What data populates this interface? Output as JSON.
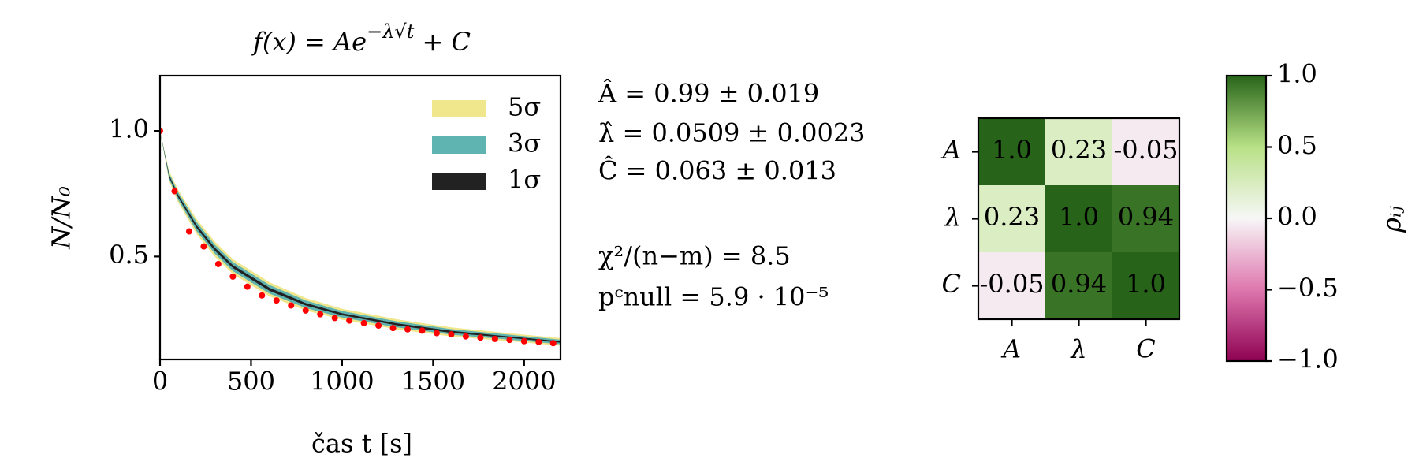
{
  "chart_data": [
    {
      "type": "scatter",
      "title": "f(x) = Ae",
      "title_sup": "−λ√t",
      "title_end": " + C",
      "xlabel": "čas t [s]",
      "ylabel": "N/N₀",
      "x": [
        0,
        80,
        160,
        240,
        320,
        400,
        480,
        560,
        640,
        720,
        800,
        880,
        960,
        1040,
        1120,
        1200,
        1280,
        1360,
        1440,
        1520,
        1600,
        1680,
        1760,
        1840,
        1920,
        2000,
        2080,
        2160
      ],
      "values": [
        1.0,
        0.76,
        0.6,
        0.54,
        0.47,
        0.42,
        0.38,
        0.345,
        0.325,
        0.305,
        0.285,
        0.27,
        0.255,
        0.245,
        0.235,
        0.225,
        0.215,
        0.21,
        0.205,
        0.195,
        0.19,
        0.182,
        0.177,
        0.172,
        0.168,
        0.163,
        0.16,
        0.155
      ],
      "color": "#ff0000",
      "band_x": [
        0,
        50,
        100,
        200,
        300,
        400,
        600,
        800,
        1000,
        1300,
        1600,
        1900,
        2200
      ],
      "bands": [
        {
          "name": "5σ",
          "color": "#f0e68c",
          "lower": [
            1.0,
            0.8,
            0.715,
            0.59,
            0.5,
            0.43,
            0.342,
            0.285,
            0.248,
            0.21,
            0.182,
            0.164,
            0.145
          ],
          "upper": [
            1.0,
            0.84,
            0.765,
            0.65,
            0.56,
            0.49,
            0.398,
            0.335,
            0.292,
            0.25,
            0.218,
            0.196,
            0.175
          ]
        },
        {
          "name": "3σ",
          "color": "#5fb3b0",
          "lower": [
            1.0,
            0.808,
            0.725,
            0.602,
            0.512,
            0.442,
            0.353,
            0.295,
            0.257,
            0.218,
            0.189,
            0.17,
            0.151
          ],
          "upper": [
            1.0,
            0.832,
            0.755,
            0.638,
            0.548,
            0.478,
            0.387,
            0.325,
            0.283,
            0.242,
            0.211,
            0.19,
            0.169
          ]
        },
        {
          "name": "1σ",
          "color": "#222222",
          "lower": [
            1.0,
            0.816,
            0.735,
            0.614,
            0.524,
            0.454,
            0.364,
            0.305,
            0.266,
            0.226,
            0.196,
            0.177,
            0.157
          ],
          "upper": [
            1.0,
            0.824,
            0.745,
            0.626,
            0.536,
            0.466,
            0.376,
            0.315,
            0.274,
            0.234,
            0.204,
            0.183,
            0.163
          ]
        }
      ],
      "xlim": [
        0,
        2200
      ],
      "xticks": [
        0,
        500,
        1000,
        1500,
        2000
      ],
      "ylim": [
        0.09,
        1.22
      ],
      "yticks": [
        0.5,
        {
          "value": 1,
          "label": "1.0"
        }
      ],
      "legend": "upper right"
    },
    {
      "type": "heatmap",
      "categories": [
        "A",
        "λ",
        "C"
      ],
      "values": [
        [
          1,
          0.23,
          -0.05
        ],
        [
          0.23,
          1,
          0.94
        ],
        [
          -0.05,
          0.94,
          1
        ]
      ],
      "value_labels": [
        [
          "1.0",
          "0.23",
          "-0.05"
        ],
        [
          "0.23",
          "1.0",
          "0.94"
        ],
        [
          "-0.05",
          "0.94",
          "1.0"
        ]
      ],
      "colormap": "PiYG",
      "clim": [
        -1,
        1
      ],
      "cticks": [
        {
          "value": 1,
          "label": "1.0"
        },
        0.5,
        {
          "value": 0,
          "label": "0.0"
        },
        {
          "value": -0.5,
          "label": "−0.5"
        },
        {
          "value": -1,
          "label": "−1.0"
        }
      ],
      "colorbar_label": "ρᵢⱼ"
    }
  ],
  "annotations": [
    "Â = 0.99 ± 0.019",
    "λ̂ = 0.0509 ± 0.0023",
    "Ĉ = 0.063 ± 0.013",
    "χ²/(n−m) = 8.5",
    "pᶜnull = 5.9 · 10⁻⁵"
  ]
}
